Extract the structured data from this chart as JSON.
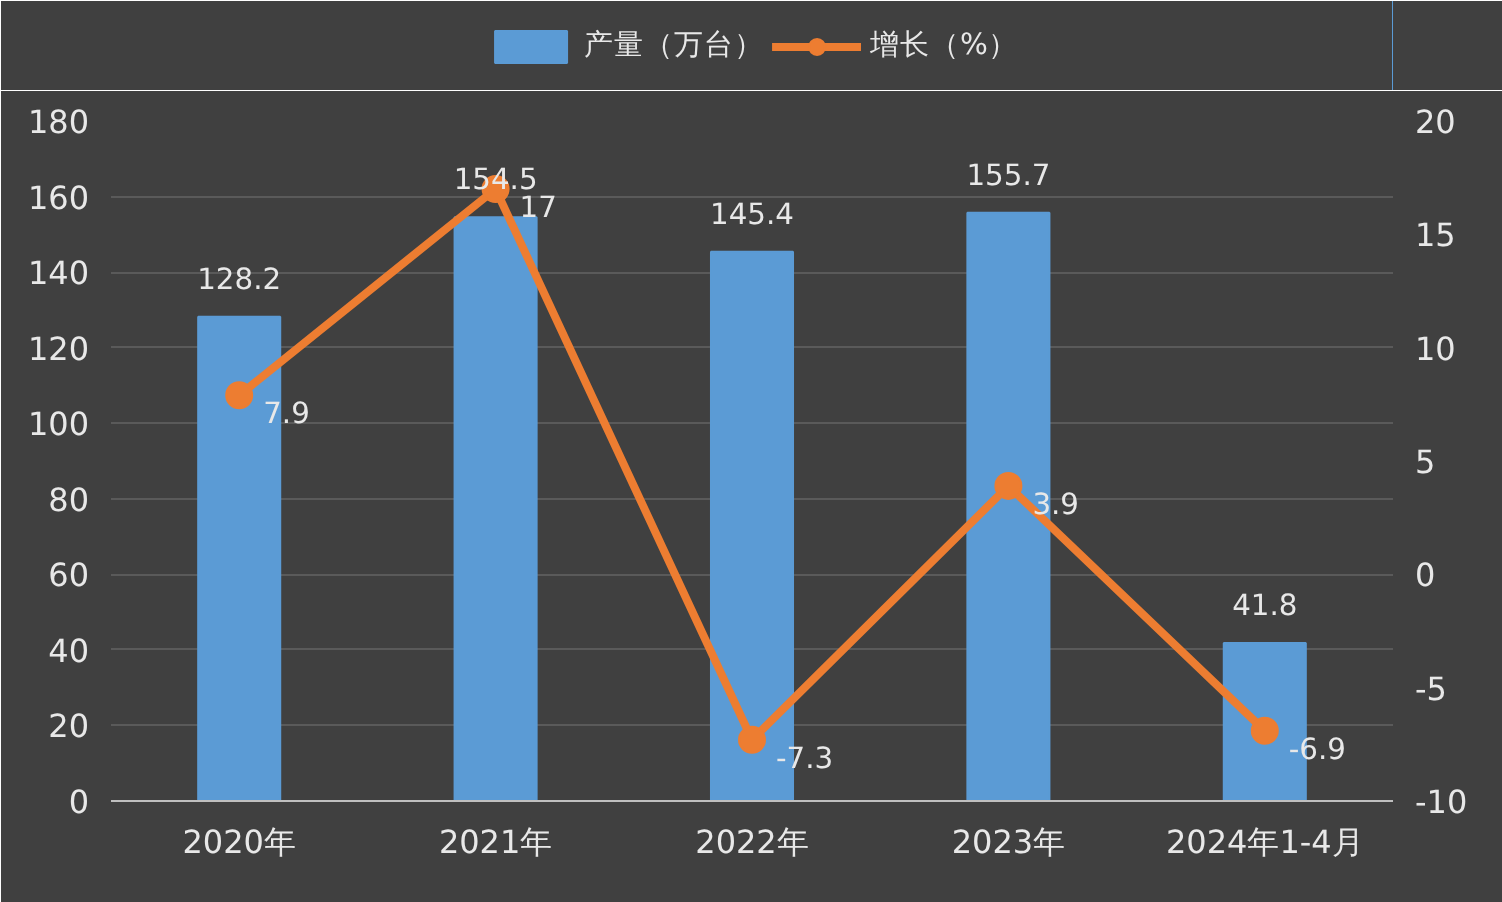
{
  "chart_data": {
    "type": "bar",
    "categories": [
      "2020年",
      "2021年",
      "2022年",
      "2023年",
      "2024年1-4月"
    ],
    "series": [
      {
        "name": "产量（万台）",
        "color": "#5b9bd5",
        "values": [
          128.2,
          154.5,
          145.4,
          155.7,
          41.8
        ]
      },
      {
        "name": "增长（%）",
        "type": "line",
        "axis": "y2",
        "color": "#ed7d31",
        "values": [
          7.9,
          17,
          -7.3,
          3.9,
          -6.9
        ]
      }
    ],
    "ylim": [
      0,
      180
    ],
    "yticks": [
      0,
      20,
      40,
      60,
      80,
      100,
      120,
      140,
      160,
      180
    ],
    "y2lim": [
      -10,
      20
    ],
    "y2ticks": [
      -10,
      -5,
      0,
      5,
      10,
      15,
      20
    ],
    "grid": "y",
    "legend": "top",
    "marker": "circle",
    "data_labels": true
  }
}
